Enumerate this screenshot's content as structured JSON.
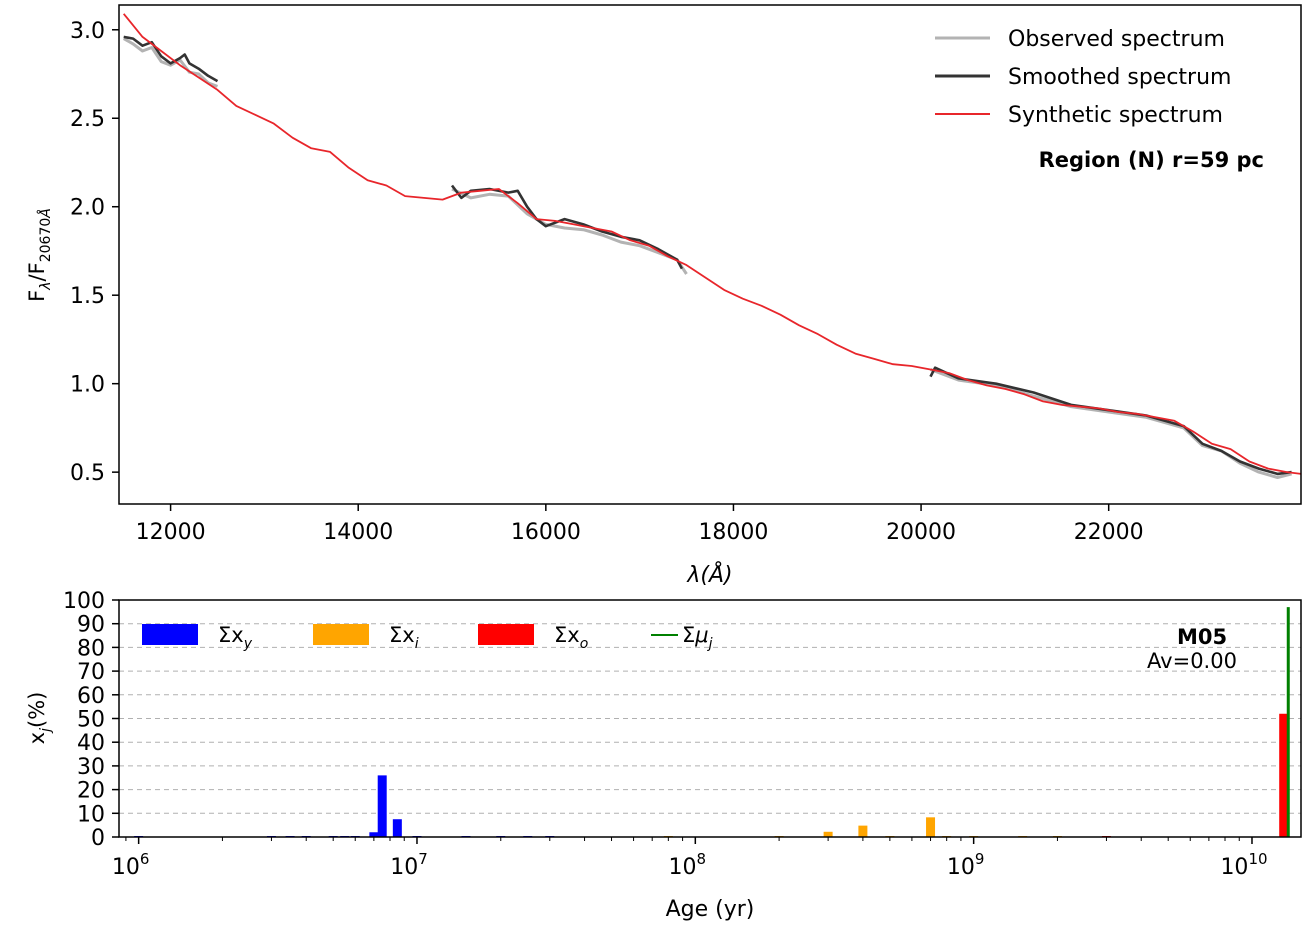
{
  "chart_data": [
    {
      "type": "line",
      "xlabel": "λ(Å)",
      "ylabel": "F_λ/F_20670Å",
      "xlim": [
        11450,
        24050
      ],
      "ylim": [
        0.32,
        3.14
      ],
      "xticks": [
        12000,
        14000,
        16000,
        18000,
        20000,
        22000
      ],
      "yticks": [
        0.5,
        1.0,
        1.5,
        2.0,
        2.5,
        3.0
      ],
      "ytick_labels": [
        "0.5",
        "1.0",
        "1.5",
        "2.0",
        "2.5",
        "3.0"
      ],
      "grid": false,
      "legend_position": "top-right",
      "annotation": "Region (N) r=59 pc",
      "series": [
        {
          "name": "Observed spectrum",
          "color": "#b3b3b3",
          "segments": [
            {
              "x": [
                11500,
                11600,
                11700,
                11800,
                11900,
                12000,
                12100,
                12200,
                12300,
                12400,
                12500
              ],
              "y": [
                2.95,
                2.92,
                2.88,
                2.9,
                2.82,
                2.8,
                2.83,
                2.76,
                2.75,
                2.7,
                2.68
              ]
            },
            {
              "x": [
                15000,
                15200,
                15400,
                15600,
                15800,
                16000,
                16200,
                16400,
                16600,
                16800,
                17000,
                17200,
                17400,
                17500
              ],
              "y": [
                2.1,
                2.05,
                2.07,
                2.06,
                1.96,
                1.9,
                1.88,
                1.87,
                1.84,
                1.8,
                1.78,
                1.74,
                1.7,
                1.62
              ]
            },
            {
              "x": [
                20100,
                20400,
                20800,
                21200,
                21600,
                22000,
                22400,
                22800,
                23000,
                23200,
                23400,
                23600,
                23800,
                23950
              ],
              "y": [
                1.08,
                1.02,
                0.99,
                0.93,
                0.87,
                0.84,
                0.81,
                0.75,
                0.65,
                0.62,
                0.55,
                0.5,
                0.47,
                0.49
              ]
            }
          ]
        },
        {
          "name": "Smoothed spectrum",
          "color": "#333333",
          "segments": [
            {
              "x": [
                11500,
                11600,
                11700,
                11800,
                11900,
                12000,
                12100,
                12150,
                12200,
                12300,
                12400,
                12500
              ],
              "y": [
                2.96,
                2.95,
                2.91,
                2.93,
                2.85,
                2.81,
                2.84,
                2.86,
                2.81,
                2.78,
                2.74,
                2.71
              ]
            },
            {
              "x": [
                15000,
                15100,
                15200,
                15400,
                15600,
                15700,
                15800,
                15900,
                16000,
                16200,
                16400,
                16600,
                16800,
                17000,
                17200,
                17400,
                17450
              ],
              "y": [
                2.12,
                2.05,
                2.09,
                2.1,
                2.08,
                2.09,
                2.0,
                1.93,
                1.89,
                1.93,
                1.9,
                1.86,
                1.83,
                1.81,
                1.76,
                1.7,
                1.65
              ]
            },
            {
              "x": [
                20100,
                20150,
                20400,
                20800,
                21200,
                21600,
                22000,
                22400,
                22800,
                23000,
                23200,
                23400,
                23600,
                23800,
                23950
              ],
              "y": [
                1.04,
                1.09,
                1.03,
                1.0,
                0.95,
                0.88,
                0.85,
                0.82,
                0.76,
                0.66,
                0.62,
                0.56,
                0.52,
                0.49,
                0.5
              ]
            }
          ]
        },
        {
          "name": "Synthetic spectrum",
          "color": "#e8262b",
          "segments": [
            {
              "x": [
                11500,
                11700,
                11900,
                12100,
                12300,
                12500,
                12700,
                12900,
                13100,
                13300,
                13500,
                13700,
                13900,
                14100,
                14300,
                14500,
                14700,
                14900,
                15100,
                15300,
                15500,
                15700,
                15900,
                16100,
                16300,
                16500,
                16700,
                16900,
                17100,
                17300,
                17500,
                17700,
                17900,
                18100,
                18300,
                18500,
                18700,
                18900,
                19100,
                19300,
                19500,
                19700,
                19900,
                20100,
                20300,
                20500,
                20700,
                20900,
                21100,
                21300,
                21500,
                21700,
                21900,
                22100,
                22300,
                22500,
                22700,
                22900,
                23100,
                23300,
                23500,
                23700,
                23900,
                24050
              ],
              "y": [
                3.09,
                2.96,
                2.88,
                2.8,
                2.73,
                2.66,
                2.57,
                2.52,
                2.47,
                2.39,
                2.33,
                2.31,
                2.22,
                2.15,
                2.12,
                2.06,
                2.05,
                2.04,
                2.08,
                2.09,
                2.1,
                2.02,
                1.93,
                1.92,
                1.9,
                1.88,
                1.86,
                1.81,
                1.78,
                1.72,
                1.67,
                1.6,
                1.53,
                1.48,
                1.44,
                1.39,
                1.33,
                1.28,
                1.22,
                1.17,
                1.14,
                1.11,
                1.1,
                1.08,
                1.06,
                1.02,
                0.99,
                0.97,
                0.94,
                0.9,
                0.88,
                0.87,
                0.86,
                0.84,
                0.83,
                0.81,
                0.79,
                0.73,
                0.66,
                0.63,
                0.56,
                0.52,
                0.5,
                0.49
              ]
            }
          ]
        }
      ]
    },
    {
      "type": "bar",
      "xscale": "log",
      "xlabel": "Age (yr)",
      "ylabel": "x_j(%)",
      "xlim": [
        850000,
        15000000000
      ],
      "ylim": [
        0,
        100
      ],
      "xticks": [
        1000000,
        10000000,
        100000000,
        1000000000,
        10000000000
      ],
      "xtick_base": [
        "10",
        "10",
        "10",
        "10",
        "10"
      ],
      "xtick_exp": [
        "6",
        "7",
        "8",
        "9",
        "10"
      ],
      "yticks": [
        0,
        10,
        20,
        30,
        40,
        50,
        60,
        70,
        80,
        90,
        100
      ],
      "grid": true,
      "legend_position": "top-left",
      "annotation_title": "M05",
      "annotation_sub": "Av=0.00",
      "series": [
        {
          "name": "Σx_y",
          "color": "#0000ff",
          "ages": [
            1000000,
            3000000,
            3500000,
            4000000,
            5000000,
            5500000,
            6000000,
            7000000,
            7500000,
            8500000,
            10000000,
            15000000,
            20000000,
            25000000,
            30000000
          ],
          "values": [
            0.2,
            0.2,
            0.2,
            0.2,
            0.2,
            0.2,
            0.2,
            2.0,
            26.0,
            7.5,
            0.2,
            0.2,
            0.2,
            0.3,
            0.2
          ]
        },
        {
          "name": "Σx_i",
          "color": "#ffa500",
          "ages": [
            80000000,
            200000000,
            300000000,
            400000000,
            500000000,
            700000000,
            800000000,
            1000000000,
            1500000000,
            2000000000
          ],
          "values": [
            0.2,
            0.2,
            2.2,
            4.8,
            0.2,
            8.3,
            0.2,
            0.2,
            0.2,
            0.2
          ]
        },
        {
          "name": "Σx_o",
          "color": "#ff0000",
          "ages": [
            3000000000,
            13000000000
          ],
          "values": [
            0.3,
            52.0
          ]
        },
        {
          "name": "Σμ_j",
          "color": "#008000",
          "ages": [
            13500000000
          ],
          "values": [
            97.0
          ]
        }
      ]
    }
  ]
}
